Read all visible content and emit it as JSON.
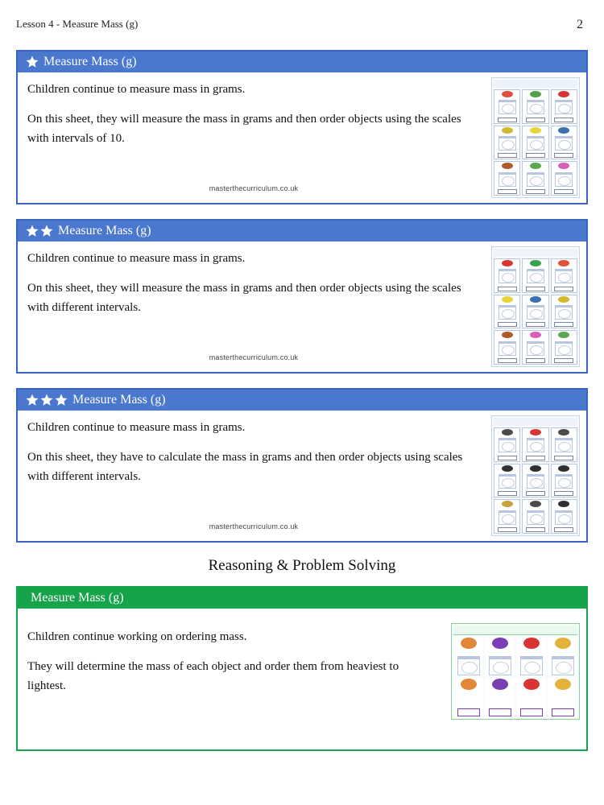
{
  "header": {
    "lesson_title": "Lesson 4 - Measure Mass (g)",
    "page_number": "2"
  },
  "section_title": "Reasoning & Problem Solving",
  "footer_source": "masterthecurriculum.co.uk",
  "cards": [
    {
      "stars": 1,
      "variant": "blue",
      "title": "Measure Mass (g)",
      "para1": "Children continue to measure mass in grams.",
      "para2": "On this sheet, they will measure the mass in grams and then order objects using the scales with intervals of 10.",
      "thumb_type": "grid3x3",
      "thumb_colors": [
        "#e2503a",
        "#4fa24a",
        "#d93434",
        "#d4b92e",
        "#e8d43a",
        "#3c6fae",
        "#b05a2a",
        "#5aa84c",
        "#d861b5"
      ]
    },
    {
      "stars": 2,
      "variant": "blue",
      "title": "Measure Mass (g)",
      "para1": "Children continue to measure mass in grams.",
      "para2": "On this sheet, they will measure the mass in grams and then order objects using the scales with different intervals.",
      "thumb_type": "grid3x3",
      "thumb_colors": [
        "#d93434",
        "#3aa24a",
        "#e2503a",
        "#e8d43a",
        "#3c6fae",
        "#d4b92e",
        "#b05a2a",
        "#d861b5",
        "#5aa84c"
      ]
    },
    {
      "stars": 3,
      "variant": "blue",
      "title": "Measure Mass (g)",
      "para1": "Children continue to measure mass in grams.",
      "para2": "On this sheet, they have to calculate the mass in grams and then order objects using scales with different intervals.",
      "thumb_type": "grid3x3",
      "thumb_colors": [
        "#4a4a4a",
        "#d93434",
        "#4a4a4a",
        "#323232",
        "#2f2f2f",
        "#2f2f2f",
        "#c8a23a",
        "#4a4a4a",
        "#2f2f2f"
      ]
    },
    {
      "stars": 0,
      "variant": "green",
      "title": "Measure Mass (g)",
      "para1": "Children continue working on ordering mass.",
      "para2": "They will determine the mass of each object and order them from heaviest to lightest.",
      "thumb_type": "order4",
      "thumb_colors": [
        "#e2863a",
        "#7a3fb5",
        "#d93434",
        "#e2b23a"
      ]
    }
  ],
  "colors": {
    "blue_border": "#3a64bf",
    "blue_header": "#4a78cf",
    "green": "#16a44a",
    "star_fill": "#ffffff",
    "star_stroke": "#ffffff"
  }
}
